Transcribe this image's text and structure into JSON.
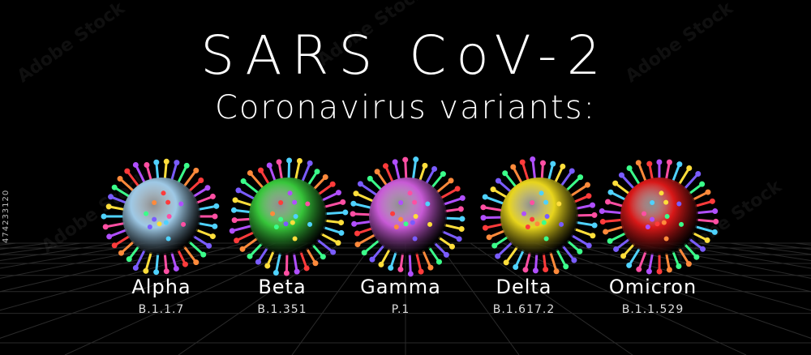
{
  "title": "SARS CoV-2",
  "subtitle": "Coronavirus variants:",
  "side_id": "474233120",
  "variants": [
    {
      "name": "Alpha",
      "code": "B.1.1.7",
      "color": "#9ec9e6"
    },
    {
      "name": "Beta",
      "code": "B.1.351",
      "color": "#37c63a"
    },
    {
      "name": "Gamma",
      "code": "P.1",
      "color": "#c85ad6"
    },
    {
      "name": "Delta",
      "code": "B.1.617.2",
      "color": "#e8d51c"
    },
    {
      "name": "Omicron",
      "code": "B.1.1.529",
      "color": "#d91818"
    }
  ]
}
